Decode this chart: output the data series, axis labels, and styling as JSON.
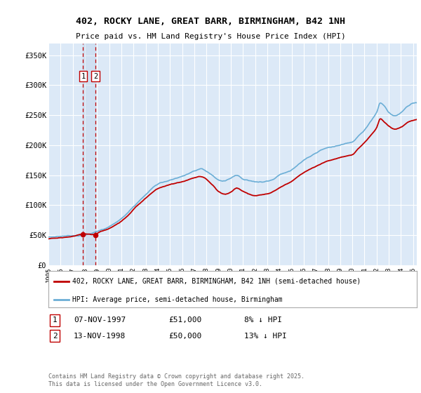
{
  "title": "402, ROCKY LANE, GREAT BARR, BIRMINGHAM, B42 1NH",
  "subtitle": "Price paid vs. HM Land Registry's House Price Index (HPI)",
  "ylim": [
    0,
    370000
  ],
  "yticks": [
    0,
    50000,
    100000,
    150000,
    200000,
    250000,
    300000,
    350000
  ],
  "ytick_labels": [
    "£0",
    "£50K",
    "£100K",
    "£150K",
    "£200K",
    "£250K",
    "£300K",
    "£350K"
  ],
  "background_color": "#ffffff",
  "plot_bg_color": "#dce9f7",
  "grid_color": "#ffffff",
  "hpi_color": "#6baed6",
  "price_color": "#c00000",
  "sale1_date": 1997.85,
  "sale1_price": 51000,
  "sale2_date": 1998.87,
  "sale2_price": 50000,
  "legend_label_red": "402, ROCKY LANE, GREAT BARR, BIRMINGHAM, B42 1NH (semi-detached house)",
  "legend_label_blue": "HPI: Average price, semi-detached house, Birmingham",
  "footer": "Contains HM Land Registry data © Crown copyright and database right 2025.\nThis data is licensed under the Open Government Licence v3.0.",
  "table_rows": [
    {
      "num": "1",
      "date": "07-NOV-1997",
      "price": "£51,000",
      "hpi": "8% ↓ HPI"
    },
    {
      "num": "2",
      "date": "13-NOV-1998",
      "price": "£50,000",
      "hpi": "13% ↓ HPI"
    }
  ],
  "xlim": [
    1995,
    2025.3
  ],
  "xticks": [
    1995,
    1996,
    1997,
    1998,
    1999,
    2000,
    2001,
    2002,
    2003,
    2004,
    2005,
    2006,
    2007,
    2008,
    2009,
    2010,
    2011,
    2012,
    2013,
    2014,
    2015,
    2016,
    2017,
    2018,
    2019,
    2020,
    2021,
    2022,
    2023,
    2024,
    2025
  ],
  "hpi_keypoints": [
    [
      1995.0,
      47000
    ],
    [
      1996.0,
      49000
    ],
    [
      1997.0,
      51000
    ],
    [
      1998.0,
      53000
    ],
    [
      1999.0,
      58000
    ],
    [
      2000.0,
      67000
    ],
    [
      2001.0,
      80000
    ],
    [
      2002.0,
      100000
    ],
    [
      2003.0,
      120000
    ],
    [
      2004.0,
      138000
    ],
    [
      2005.0,
      145000
    ],
    [
      2006.0,
      150000
    ],
    [
      2007.0,
      158000
    ],
    [
      2007.5,
      160000
    ],
    [
      2008.5,
      148000
    ],
    [
      2009.0,
      140000
    ],
    [
      2009.5,
      138000
    ],
    [
      2010.0,
      143000
    ],
    [
      2010.5,
      148000
    ],
    [
      2011.0,
      142000
    ],
    [
      2011.5,
      140000
    ],
    [
      2012.0,
      138000
    ],
    [
      2012.5,
      138000
    ],
    [
      2013.0,
      140000
    ],
    [
      2013.5,
      143000
    ],
    [
      2014.0,
      150000
    ],
    [
      2015.0,
      160000
    ],
    [
      2016.0,
      175000
    ],
    [
      2017.0,
      187000
    ],
    [
      2017.5,
      192000
    ],
    [
      2018.0,
      195000
    ],
    [
      2018.5,
      197000
    ],
    [
      2019.0,
      200000
    ],
    [
      2019.5,
      203000
    ],
    [
      2020.0,
      205000
    ],
    [
      2020.5,
      215000
    ],
    [
      2021.0,
      225000
    ],
    [
      2021.5,
      240000
    ],
    [
      2022.0,
      255000
    ],
    [
      2022.3,
      270000
    ],
    [
      2022.7,
      263000
    ],
    [
      2023.0,
      255000
    ],
    [
      2023.5,
      250000
    ],
    [
      2024.0,
      255000
    ],
    [
      2024.5,
      265000
    ],
    [
      2025.0,
      270000
    ]
  ],
  "red_keypoints": [
    [
      1995.0,
      44000
    ],
    [
      1996.0,
      46000
    ],
    [
      1997.0,
      48000
    ],
    [
      1997.85,
      51000
    ],
    [
      1998.0,
      51000
    ],
    [
      1998.87,
      50000
    ],
    [
      1999.0,
      52000
    ],
    [
      2000.0,
      60000
    ],
    [
      2001.0,
      72000
    ],
    [
      2002.0,
      92000
    ],
    [
      2003.0,
      110000
    ],
    [
      2004.0,
      126000
    ],
    [
      2005.0,
      133000
    ],
    [
      2006.0,
      138000
    ],
    [
      2007.0,
      145000
    ],
    [
      2007.5,
      148000
    ],
    [
      2008.5,
      133000
    ],
    [
      2009.0,
      122000
    ],
    [
      2009.5,
      118000
    ],
    [
      2010.0,
      122000
    ],
    [
      2010.5,
      128000
    ],
    [
      2011.0,
      122000
    ],
    [
      2011.5,
      118000
    ],
    [
      2012.0,
      115000
    ],
    [
      2012.5,
      117000
    ],
    [
      2013.0,
      118000
    ],
    [
      2013.5,
      122000
    ],
    [
      2014.0,
      128000
    ],
    [
      2015.0,
      138000
    ],
    [
      2016.0,
      153000
    ],
    [
      2017.0,
      163000
    ],
    [
      2017.5,
      168000
    ],
    [
      2018.0,
      172000
    ],
    [
      2018.5,
      175000
    ],
    [
      2019.0,
      178000
    ],
    [
      2019.5,
      180000
    ],
    [
      2020.0,
      183000
    ],
    [
      2020.5,
      193000
    ],
    [
      2021.0,
      203000
    ],
    [
      2021.5,
      215000
    ],
    [
      2022.0,
      228000
    ],
    [
      2022.3,
      242000
    ],
    [
      2022.7,
      235000
    ],
    [
      2023.0,
      230000
    ],
    [
      2023.5,
      225000
    ],
    [
      2024.0,
      228000
    ],
    [
      2024.5,
      235000
    ],
    [
      2025.0,
      240000
    ]
  ]
}
